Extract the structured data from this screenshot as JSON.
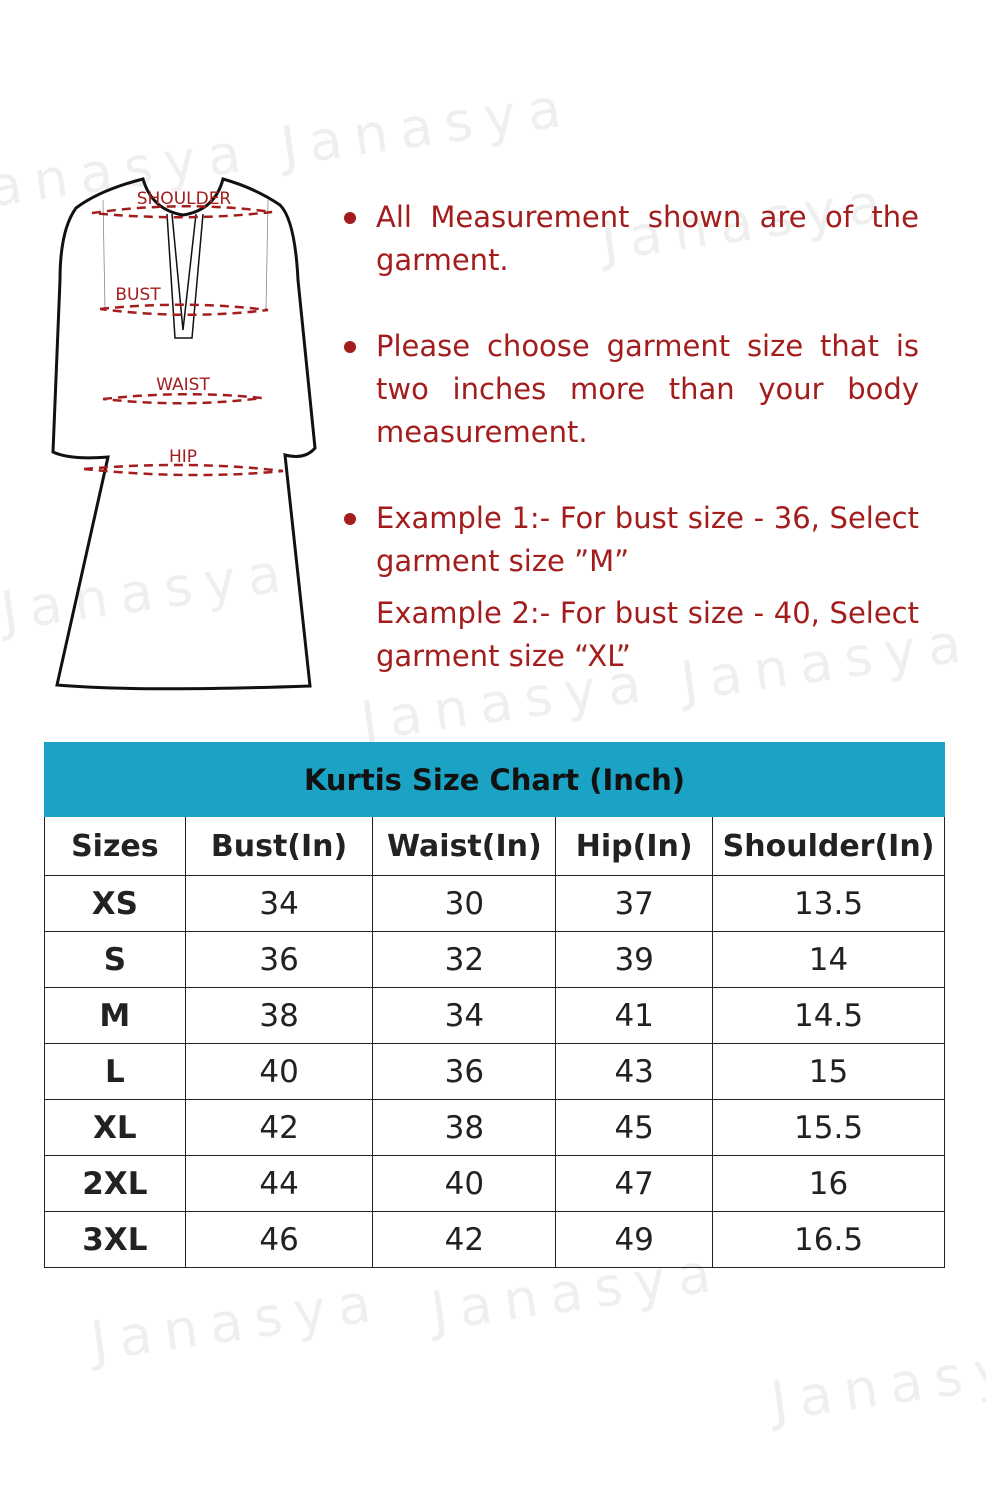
{
  "watermark": "Janasya",
  "diagram": {
    "labels": {
      "shoulder": "SHOULDER",
      "bust": "BUST",
      "waist": "WAIST",
      "hip": "HIP"
    },
    "line_color": "#a31d1d"
  },
  "notes": [
    "All Measurement shown are of the garment.",
    "Please choose garment size that is two inches more than your body measurement.",
    "Example 1:- For bust size - 36, Select garment size ”M”",
    "Example 2:- For bust size - 40, Select garment size “XL”"
  ],
  "colors": {
    "accent": "#1aa3c4",
    "text_red": "#a31d1d"
  },
  "table": {
    "title": "Kurtis Size Chart (Inch)",
    "columns": [
      "Sizes",
      "Bust(In)",
      "Waist(In)",
      "Hip(In)",
      "Shoulder(In)"
    ],
    "rows": [
      [
        "XS",
        "34",
        "30",
        "37",
        "13.5"
      ],
      [
        "S",
        "36",
        "32",
        "39",
        "14"
      ],
      [
        "M",
        "38",
        "34",
        "41",
        "14.5"
      ],
      [
        "L",
        "40",
        "36",
        "43",
        "15"
      ],
      [
        "XL",
        "42",
        "38",
        "45",
        "15.5"
      ],
      [
        "2XL",
        "44",
        "40",
        "47",
        "16"
      ],
      [
        "3XL",
        "46",
        "42",
        "49",
        "16.5"
      ]
    ]
  }
}
